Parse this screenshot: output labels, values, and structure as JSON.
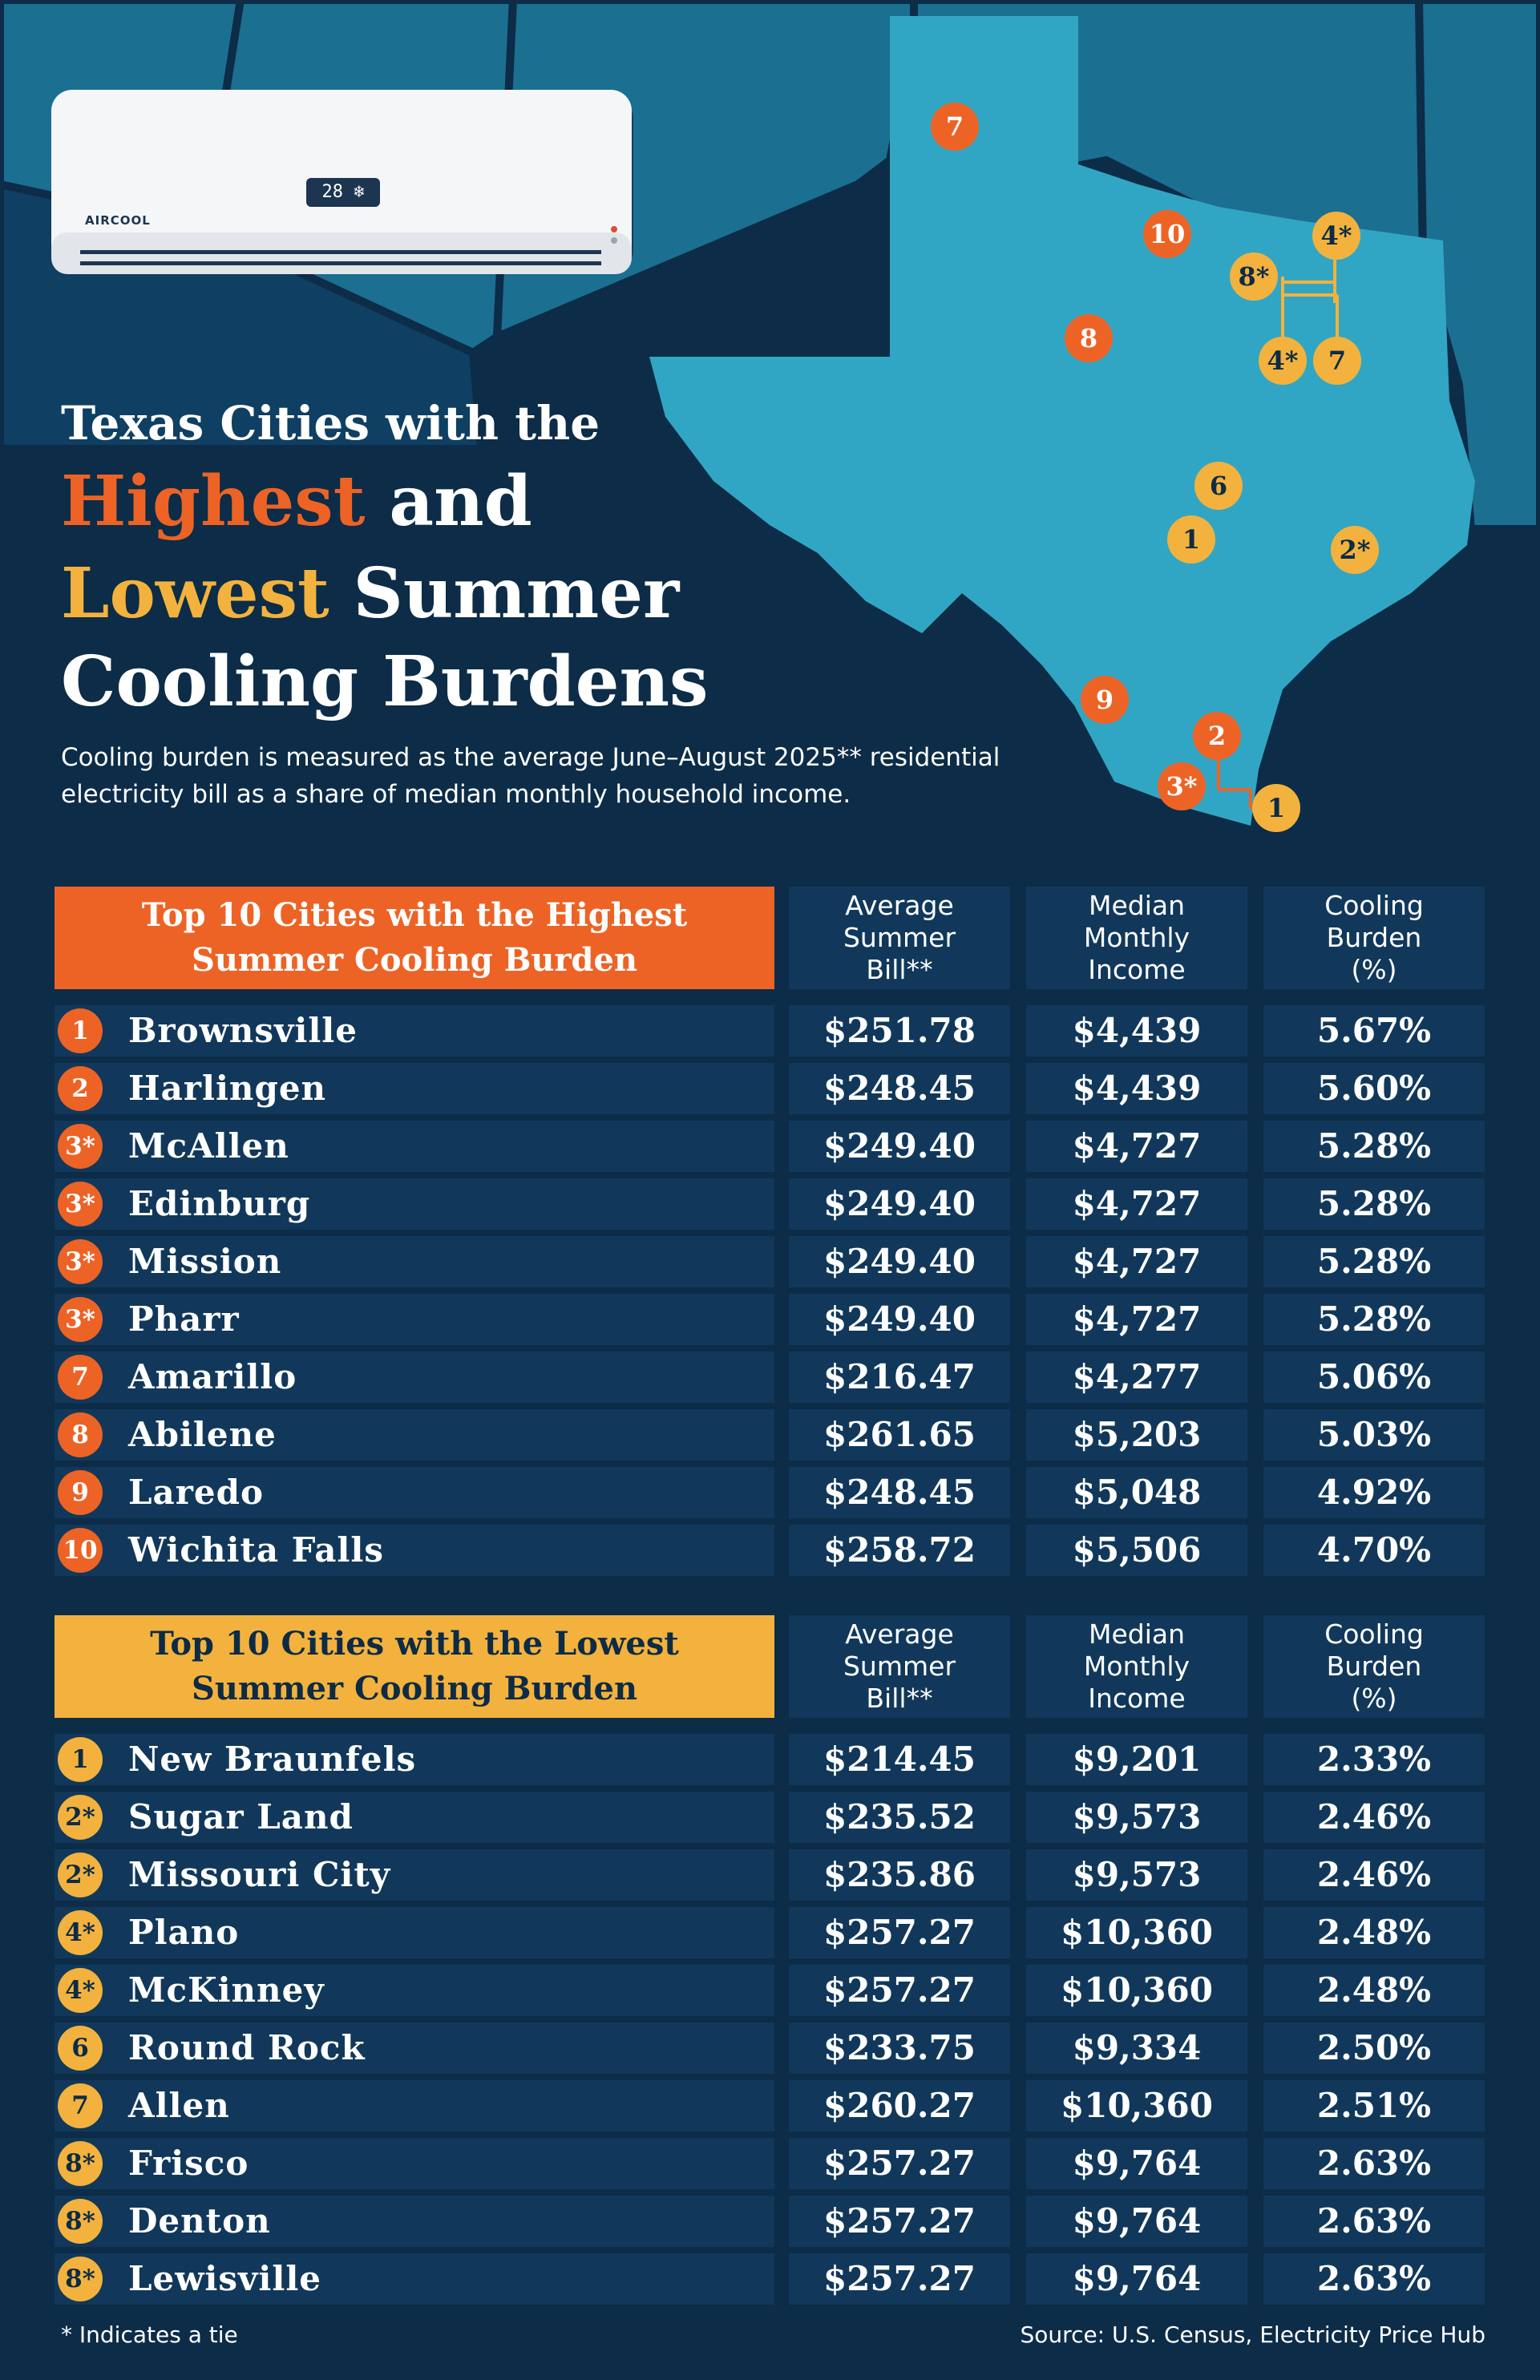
{
  "colors": {
    "background": "#0c2c48",
    "panel": "#11385a",
    "highest_accent": "#ed6325",
    "lowest_accent": "#f3b23d",
    "map_texas": "#31a6c4",
    "map_neighbors": "#1b6f91"
  },
  "ac_unit": {
    "brand": "AIRCOOL",
    "display": "28 ❄"
  },
  "title": {
    "line1": "Texas Cities with the",
    "highest": "Highest",
    "and": " and",
    "lowest": "Lowest",
    "summer": " Summer",
    "line4": "Cooling Burdens"
  },
  "subtitle": "Cooling burden is measured as the average June–August 2025** residential electricity bill as a share of median monthly household income.",
  "columns": {
    "bill": "Average\nSummer\nBill**",
    "income": "Median\nMonthly\nIncome",
    "burden": "Cooling\nBurden\n(%)"
  },
  "highest": {
    "title": "Top 10 Cities with the Highest Summer Cooling Burden",
    "rows": [
      {
        "rank": "1",
        "city": "Brownsville",
        "bill": "$251.78",
        "income": "$4,439",
        "burden": "5.67%"
      },
      {
        "rank": "2",
        "city": "Harlingen",
        "bill": "$248.45",
        "income": "$4,439",
        "burden": "5.60%"
      },
      {
        "rank": "3*",
        "city": "McAllen",
        "bill": "$249.40",
        "income": "$4,727",
        "burden": "5.28%"
      },
      {
        "rank": "3*",
        "city": "Edinburg",
        "bill": "$249.40",
        "income": "$4,727",
        "burden": "5.28%"
      },
      {
        "rank": "3*",
        "city": "Mission",
        "bill": "$249.40",
        "income": "$4,727",
        "burden": "5.28%"
      },
      {
        "rank": "3*",
        "city": "Pharr",
        "bill": "$249.40",
        "income": "$4,727",
        "burden": "5.28%"
      },
      {
        "rank": "7",
        "city": "Amarillo",
        "bill": "$216.47",
        "income": "$4,277",
        "burden": "5.06%"
      },
      {
        "rank": "8",
        "city": "Abilene",
        "bill": "$261.65",
        "income": "$5,203",
        "burden": "5.03%"
      },
      {
        "rank": "9",
        "city": "Laredo",
        "bill": "$248.45",
        "income": "$5,048",
        "burden": "4.92%"
      },
      {
        "rank": "10",
        "city": "Wichita Falls",
        "bill": "$258.72",
        "income": "$5,506",
        "burden": "4.70%"
      }
    ]
  },
  "lowest": {
    "title": "Top 10 Cities with the Lowest Summer Cooling Burden",
    "rows": [
      {
        "rank": "1",
        "city": "New Braunfels",
        "bill": "$214.45",
        "income": "$9,201",
        "burden": "2.33%"
      },
      {
        "rank": "2*",
        "city": "Sugar Land",
        "bill": "$235.52",
        "income": "$9,573",
        "burden": "2.46%"
      },
      {
        "rank": "2*",
        "city": "Missouri City",
        "bill": "$235.86",
        "income": "$9,573",
        "burden": "2.46%"
      },
      {
        "rank": "4*",
        "city": "Plano",
        "bill": "$257.27",
        "income": "$10,360",
        "burden": "2.48%"
      },
      {
        "rank": "4*",
        "city": "McKinney",
        "bill": "$257.27",
        "income": "$10,360",
        "burden": "2.48%"
      },
      {
        "rank": "6",
        "city": "Round Rock",
        "bill": "$233.75",
        "income": "$9,334",
        "burden": "2.50%"
      },
      {
        "rank": "7",
        "city": "Allen",
        "bill": "$260.27",
        "income": "$10,360",
        "burden": "2.51%"
      },
      {
        "rank": "8*",
        "city": "Frisco",
        "bill": "$257.27",
        "income": "$9,764",
        "burden": "2.63%"
      },
      {
        "rank": "8*",
        "city": "Denton",
        "bill": "$257.27",
        "income": "$9,764",
        "burden": "2.63%"
      },
      {
        "rank": "8*",
        "city": "Lewisville",
        "bill": "$257.27",
        "income": "$9,764",
        "burden": "2.63%"
      }
    ]
  },
  "map_markers": [
    {
      "type": "hi",
      "label": "7"
    },
    {
      "type": "hi",
      "label": "10"
    },
    {
      "type": "hi",
      "label": "8"
    },
    {
      "type": "hi",
      "label": "9"
    },
    {
      "type": "hi",
      "label": "2"
    },
    {
      "type": "hi",
      "label": "3*"
    },
    {
      "type": "lo",
      "label": "1"
    },
    {
      "type": "lo",
      "label": "4*"
    },
    {
      "type": "lo",
      "label": "8*"
    },
    {
      "type": "lo",
      "label": "4*"
    },
    {
      "type": "lo",
      "label": "7"
    },
    {
      "type": "lo",
      "label": "6"
    },
    {
      "type": "lo",
      "label": "1"
    },
    {
      "type": "lo",
      "label": "2*"
    }
  ],
  "footer": {
    "note": "* Indicates a tie",
    "source": "Source: U.S. Census, Electricity Price Hub"
  }
}
